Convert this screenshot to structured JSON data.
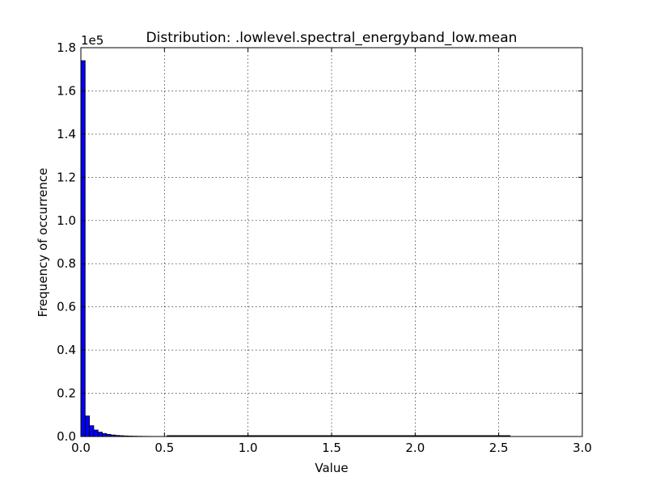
{
  "chart_data": {
    "type": "bar",
    "title": "Distribution: .lowlevel.spectral_energyband_low.mean",
    "xlabel": "Value",
    "ylabel": "Frequency of occurrence",
    "y_offset_label": "1e5",
    "xlim": [
      0.0,
      3.0
    ],
    "ylim": [
      0.0,
      1.8
    ],
    "y_scale_factor": 100000,
    "grid": true,
    "bar_color": "#0000ff",
    "bin_width": 0.0257,
    "x_ticks": [
      "0.0",
      "0.5",
      "1.0",
      "1.5",
      "2.0",
      "2.5",
      "3.0"
    ],
    "y_ticks": [
      "0.0",
      "0.2",
      "0.4",
      "0.6",
      "0.8",
      "1.0",
      "1.2",
      "1.4",
      "1.6",
      "1.8"
    ],
    "bins": [
      {
        "x": 0.0,
        "value": 174000
      },
      {
        "x": 0.0257,
        "value": 9500
      },
      {
        "x": 0.0514,
        "value": 5000
      },
      {
        "x": 0.0771,
        "value": 3000
      },
      {
        "x": 0.1028,
        "value": 2000
      },
      {
        "x": 0.1285,
        "value": 1400
      },
      {
        "x": 0.1542,
        "value": 1000
      },
      {
        "x": 0.1799,
        "value": 700
      },
      {
        "x": 0.2056,
        "value": 500
      },
      {
        "x": 0.2313,
        "value": 380
      },
      {
        "x": 0.257,
        "value": 280
      },
      {
        "x": 0.2827,
        "value": 200
      },
      {
        "x": 0.3084,
        "value": 150
      },
      {
        "x": 0.3341,
        "value": 110
      },
      {
        "x": 0.3598,
        "value": 80
      },
      {
        "x": 0.3855,
        "value": 60
      },
      {
        "x": 0.4112,
        "value": 45
      },
      {
        "x": 0.4369,
        "value": 35
      },
      {
        "x": 0.4626,
        "value": 25
      },
      {
        "x": 0.4883,
        "value": 20
      }
    ],
    "x_max_extent": 2.57
  }
}
